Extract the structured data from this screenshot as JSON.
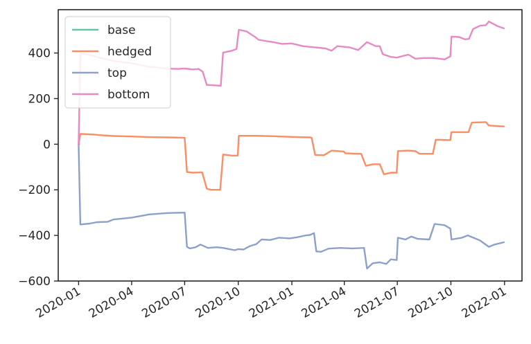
{
  "chart_data": {
    "type": "line",
    "title": "",
    "xlabel": "",
    "ylabel": "",
    "xlim": [
      "2019-11-27",
      "2022-01-31"
    ],
    "ylim": [
      -600,
      590
    ],
    "grid": false,
    "legend_position": "top-left",
    "x_ticks": [
      "2020-01",
      "2020-04",
      "2020-07",
      "2020-10",
      "2021-01",
      "2021-04",
      "2021-07",
      "2021-10",
      "2022-01"
    ],
    "y_ticks": [
      -600,
      -400,
      -200,
      0,
      200,
      400
    ],
    "series": [
      {
        "name": "base",
        "color": "#66c2a5",
        "points": [
          [
            "2020-01-01",
            0
          ],
          [
            "2020-01-02",
            0
          ]
        ]
      },
      {
        "name": "hedged",
        "color": "#fc8d62",
        "points": [
          [
            "2020-01-01",
            0
          ],
          [
            "2020-01-04",
            45
          ],
          [
            "2020-01-25",
            43
          ],
          [
            "2020-02-05",
            40
          ],
          [
            "2020-03-01",
            36
          ],
          [
            "2020-04-01",
            34
          ],
          [
            "2020-05-01",
            31
          ],
          [
            "2020-06-01",
            30
          ],
          [
            "2020-06-20",
            29
          ],
          [
            "2020-07-01",
            28
          ],
          [
            "2020-07-05",
            -122
          ],
          [
            "2020-07-15",
            -125
          ],
          [
            "2020-07-31",
            -123
          ],
          [
            "2020-08-08",
            -195
          ],
          [
            "2020-08-15",
            -200
          ],
          [
            "2020-08-31",
            -200
          ],
          [
            "2020-09-05",
            -45
          ],
          [
            "2020-09-20",
            -50
          ],
          [
            "2020-09-30",
            -50
          ],
          [
            "2020-10-02",
            37
          ],
          [
            "2020-11-01",
            37
          ],
          [
            "2020-12-01",
            35
          ],
          [
            "2021-01-01",
            32
          ],
          [
            "2021-02-01",
            30
          ],
          [
            "2021-02-04",
            28
          ],
          [
            "2021-02-10",
            -47
          ],
          [
            "2021-02-25",
            -48
          ],
          [
            "2021-03-10",
            -28
          ],
          [
            "2021-03-31",
            -32
          ],
          [
            "2021-04-03",
            -40
          ],
          [
            "2021-04-30",
            -42
          ],
          [
            "2021-05-08",
            -95
          ],
          [
            "2021-05-20",
            -88
          ],
          [
            "2021-06-01",
            -88
          ],
          [
            "2021-06-08",
            -132
          ],
          [
            "2021-06-20",
            -125
          ],
          [
            "2021-06-30",
            -125
          ],
          [
            "2021-07-02",
            -30
          ],
          [
            "2021-07-20",
            -28
          ],
          [
            "2021-08-01",
            -30
          ],
          [
            "2021-08-08",
            -42
          ],
          [
            "2021-08-31",
            -42
          ],
          [
            "2021-09-05",
            20
          ],
          [
            "2021-09-30",
            18
          ],
          [
            "2021-10-02",
            53
          ],
          [
            "2021-10-31",
            53
          ],
          [
            "2021-11-06",
            95
          ],
          [
            "2021-11-30",
            97
          ],
          [
            "2021-12-05",
            82
          ],
          [
            "2021-12-31",
            78
          ]
        ]
      },
      {
        "name": "top",
        "color": "#8da0cb",
        "points": [
          [
            "2020-01-01",
            0
          ],
          [
            "2020-01-04",
            -352
          ],
          [
            "2020-01-20",
            -348
          ],
          [
            "2020-02-01",
            -342
          ],
          [
            "2020-02-20",
            -340
          ],
          [
            "2020-03-01",
            -330
          ],
          [
            "2020-03-20",
            -325
          ],
          [
            "2020-04-01",
            -322
          ],
          [
            "2020-05-01",
            -308
          ],
          [
            "2020-06-01",
            -302
          ],
          [
            "2020-07-01",
            -300
          ],
          [
            "2020-07-05",
            -450
          ],
          [
            "2020-07-10",
            -457
          ],
          [
            "2020-07-20",
            -452
          ],
          [
            "2020-07-28",
            -440
          ],
          [
            "2020-08-10",
            -455
          ],
          [
            "2020-08-25",
            -452
          ],
          [
            "2020-09-05",
            -455
          ],
          [
            "2020-09-25",
            -465
          ],
          [
            "2020-10-01",
            -460
          ],
          [
            "2020-10-10",
            -462
          ],
          [
            "2020-10-20",
            -448
          ],
          [
            "2020-11-01",
            -438
          ],
          [
            "2020-11-10",
            -418
          ],
          [
            "2020-11-25",
            -420
          ],
          [
            "2020-12-10",
            -410
          ],
          [
            "2020-12-28",
            -413
          ],
          [
            "2021-01-10",
            -408
          ],
          [
            "2021-01-25",
            -400
          ],
          [
            "2021-02-01",
            -398
          ],
          [
            "2021-02-08",
            -390
          ],
          [
            "2021-02-12",
            -470
          ],
          [
            "2021-02-20",
            -472
          ],
          [
            "2021-03-05",
            -458
          ],
          [
            "2021-03-25",
            -455
          ],
          [
            "2021-04-15",
            -457
          ],
          [
            "2021-05-05",
            -455
          ],
          [
            "2021-05-10",
            -545
          ],
          [
            "2021-05-20",
            -522
          ],
          [
            "2021-06-01",
            -518
          ],
          [
            "2021-06-12",
            -525
          ],
          [
            "2021-06-20",
            -505
          ],
          [
            "2021-06-30",
            -508
          ],
          [
            "2021-07-02",
            -410
          ],
          [
            "2021-07-15",
            -418
          ],
          [
            "2021-07-25",
            -405
          ],
          [
            "2021-08-05",
            -415
          ],
          [
            "2021-08-25",
            -418
          ],
          [
            "2021-09-03",
            -350
          ],
          [
            "2021-09-20",
            -355
          ],
          [
            "2021-09-30",
            -370
          ],
          [
            "2021-10-02",
            -418
          ],
          [
            "2021-10-20",
            -410
          ],
          [
            "2021-10-30",
            -400
          ],
          [
            "2021-11-20",
            -422
          ],
          [
            "2021-12-05",
            -450
          ],
          [
            "2021-12-15",
            -440
          ],
          [
            "2021-12-31",
            -430
          ]
        ]
      },
      {
        "name": "bottom",
        "color": "#e78ac3",
        "points": [
          [
            "2020-01-01",
            0
          ],
          [
            "2020-01-04",
            397
          ],
          [
            "2020-01-20",
            392
          ],
          [
            "2020-02-05",
            380
          ],
          [
            "2020-03-01",
            365
          ],
          [
            "2020-04-01",
            355
          ],
          [
            "2020-05-01",
            340
          ],
          [
            "2020-06-01",
            332
          ],
          [
            "2020-06-20",
            330
          ],
          [
            "2020-07-01",
            332
          ],
          [
            "2020-07-15",
            328
          ],
          [
            "2020-07-25",
            330
          ],
          [
            "2020-08-01",
            318
          ],
          [
            "2020-08-08",
            260
          ],
          [
            "2020-08-25",
            258
          ],
          [
            "2020-09-01",
            256
          ],
          [
            "2020-09-05",
            402
          ],
          [
            "2020-09-20",
            410
          ],
          [
            "2020-09-28",
            418
          ],
          [
            "2020-10-02",
            502
          ],
          [
            "2020-10-15",
            495
          ],
          [
            "2020-10-30",
            470
          ],
          [
            "2020-11-05",
            458
          ],
          [
            "2020-12-01",
            447
          ],
          [
            "2020-12-15",
            440
          ],
          [
            "2021-01-01",
            442
          ],
          [
            "2021-01-20",
            430
          ],
          [
            "2021-02-10",
            425
          ],
          [
            "2021-02-28",
            420
          ],
          [
            "2021-03-10",
            410
          ],
          [
            "2021-03-20",
            430
          ],
          [
            "2021-04-10",
            425
          ],
          [
            "2021-04-25",
            413
          ],
          [
            "2021-05-10",
            448
          ],
          [
            "2021-05-25",
            430
          ],
          [
            "2021-06-01",
            430
          ],
          [
            "2021-06-06",
            395
          ],
          [
            "2021-06-20",
            383
          ],
          [
            "2021-06-30",
            380
          ],
          [
            "2021-07-20",
            393
          ],
          [
            "2021-08-01",
            375
          ],
          [
            "2021-08-15",
            378
          ],
          [
            "2021-09-01",
            378
          ],
          [
            "2021-09-20",
            372
          ],
          [
            "2021-09-30",
            385
          ],
          [
            "2021-10-02",
            472
          ],
          [
            "2021-10-15",
            470
          ],
          [
            "2021-10-25",
            460
          ],
          [
            "2021-11-01",
            462
          ],
          [
            "2021-11-08",
            505
          ],
          [
            "2021-11-20",
            520
          ],
          [
            "2021-11-30",
            522
          ],
          [
            "2021-12-05",
            538
          ],
          [
            "2021-12-20",
            518
          ],
          [
            "2021-12-31",
            508
          ]
        ]
      }
    ]
  }
}
